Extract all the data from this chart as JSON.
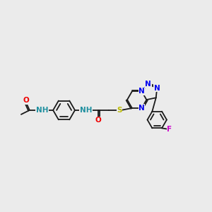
{
  "bg_color": "#ebebeb",
  "bond_color": "#1a1a1a",
  "bond_width": 1.3,
  "atom_colors": {
    "N": "#0000ee",
    "O": "#ee0000",
    "S": "#bbbb00",
    "F": "#cc00cc",
    "NH": "#2090a0",
    "H_only": "#2090a0"
  },
  "font_size": 7.5,
  "fig_width": 3.0,
  "fig_height": 3.0,
  "dpi": 100,
  "xlim": [
    0,
    10.0
  ],
  "ylim": [
    2.5,
    8.5
  ]
}
